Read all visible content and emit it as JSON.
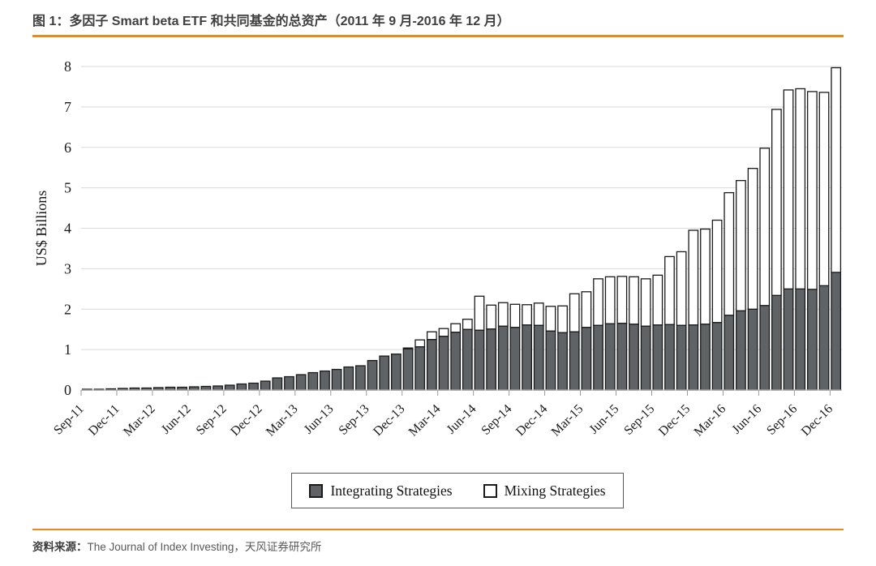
{
  "figure": {
    "title": "图 1：多因子 Smart beta ETF 和共同基金的总资产（2011 年 9 月-2016 年 12 月）",
    "source_prefix": "资料来源：",
    "source_text": "The Journal of Index Investing，天风证券研究所",
    "accent_color": "#F0861E"
  },
  "chart_data": {
    "type": "bar",
    "stacked": true,
    "title": "多因子 Smart beta ETF 和共同基金的总资产（2011 年 9 月-2016 年 12 月）",
    "xlabel": "",
    "ylabel": "US$ Billions",
    "ylim": [
      0,
      8
    ],
    "yticks": [
      0,
      1,
      2,
      3,
      4,
      5,
      6,
      7,
      8
    ],
    "grid": true,
    "legend_position": "bottom",
    "x_tick_labels": [
      "Sep-11",
      "Dec-11",
      "Mar-12",
      "Jun-12",
      "Sep-12",
      "Dec-12",
      "Mar-13",
      "Jun-13",
      "Sep-13",
      "Dec-13",
      "Mar-14",
      "Jun-14",
      "Sep-14",
      "Dec-14",
      "Mar-15",
      "Jun-15",
      "Sep-15",
      "Dec-15",
      "Mar-16",
      "Jun-16",
      "Sep-16",
      "Dec-16"
    ],
    "categories": [
      "Sep-11",
      "Oct-11",
      "Nov-11",
      "Dec-11",
      "Jan-12",
      "Feb-12",
      "Mar-12",
      "Apr-12",
      "May-12",
      "Jun-12",
      "Jul-12",
      "Aug-12",
      "Sep-12",
      "Oct-12",
      "Nov-12",
      "Dec-12",
      "Jan-13",
      "Feb-13",
      "Mar-13",
      "Apr-13",
      "May-13",
      "Jun-13",
      "Jul-13",
      "Aug-13",
      "Sep-13",
      "Oct-13",
      "Nov-13",
      "Dec-13",
      "Jan-14",
      "Feb-14",
      "Mar-14",
      "Apr-14",
      "May-14",
      "Jun-14",
      "Jul-14",
      "Aug-14",
      "Sep-14",
      "Oct-14",
      "Nov-14",
      "Dec-14",
      "Jan-15",
      "Feb-15",
      "Mar-15",
      "Apr-15",
      "May-15",
      "Jun-15",
      "Jul-15",
      "Aug-15",
      "Sep-15",
      "Oct-15",
      "Nov-15",
      "Dec-15",
      "Jan-16",
      "Feb-16",
      "Mar-16",
      "Apr-16",
      "May-16",
      "Jun-16",
      "Jul-16",
      "Aug-16",
      "Sep-16",
      "Oct-16",
      "Nov-16",
      "Dec-16"
    ],
    "series": [
      {
        "name": "Integrating Strategies",
        "color": "#5f6366",
        "values": [
          0.02,
          0.02,
          0.03,
          0.04,
          0.05,
          0.05,
          0.06,
          0.07,
          0.07,
          0.08,
          0.09,
          0.1,
          0.12,
          0.15,
          0.17,
          0.22,
          0.3,
          0.33,
          0.38,
          0.43,
          0.47,
          0.51,
          0.57,
          0.6,
          0.73,
          0.84,
          0.89,
          1.02,
          1.07,
          1.25,
          1.33,
          1.43,
          1.5,
          1.48,
          1.51,
          1.58,
          1.55,
          1.61,
          1.6,
          1.46,
          1.42,
          1.44,
          1.55,
          1.6,
          1.64,
          1.65,
          1.63,
          1.58,
          1.61,
          1.62,
          1.6,
          1.61,
          1.63,
          1.67,
          1.85,
          1.96,
          2.0,
          2.09,
          2.34,
          2.5,
          2.5,
          2.49,
          2.58,
          2.91
        ]
      },
      {
        "name": "Mixing Strategies",
        "color": "#ffffff",
        "values": [
          0,
          0,
          0,
          0,
          0,
          0,
          0,
          0,
          0,
          0,
          0,
          0,
          0,
          0,
          0,
          0,
          0,
          0,
          0,
          0,
          0,
          0,
          0,
          0,
          0,
          0,
          0,
          0.02,
          0.17,
          0.19,
          0.19,
          0.21,
          0.25,
          0.84,
          0.59,
          0.58,
          0.57,
          0.5,
          0.55,
          0.61,
          0.66,
          0.94,
          0.88,
          1.15,
          1.16,
          1.16,
          1.17,
          1.17,
          1.23,
          1.68,
          1.82,
          2.34,
          2.35,
          2.53,
          3.03,
          3.22,
          3.48,
          3.89,
          4.6,
          4.92,
          4.95,
          4.89,
          4.78,
          5.06
        ]
      }
    ]
  }
}
